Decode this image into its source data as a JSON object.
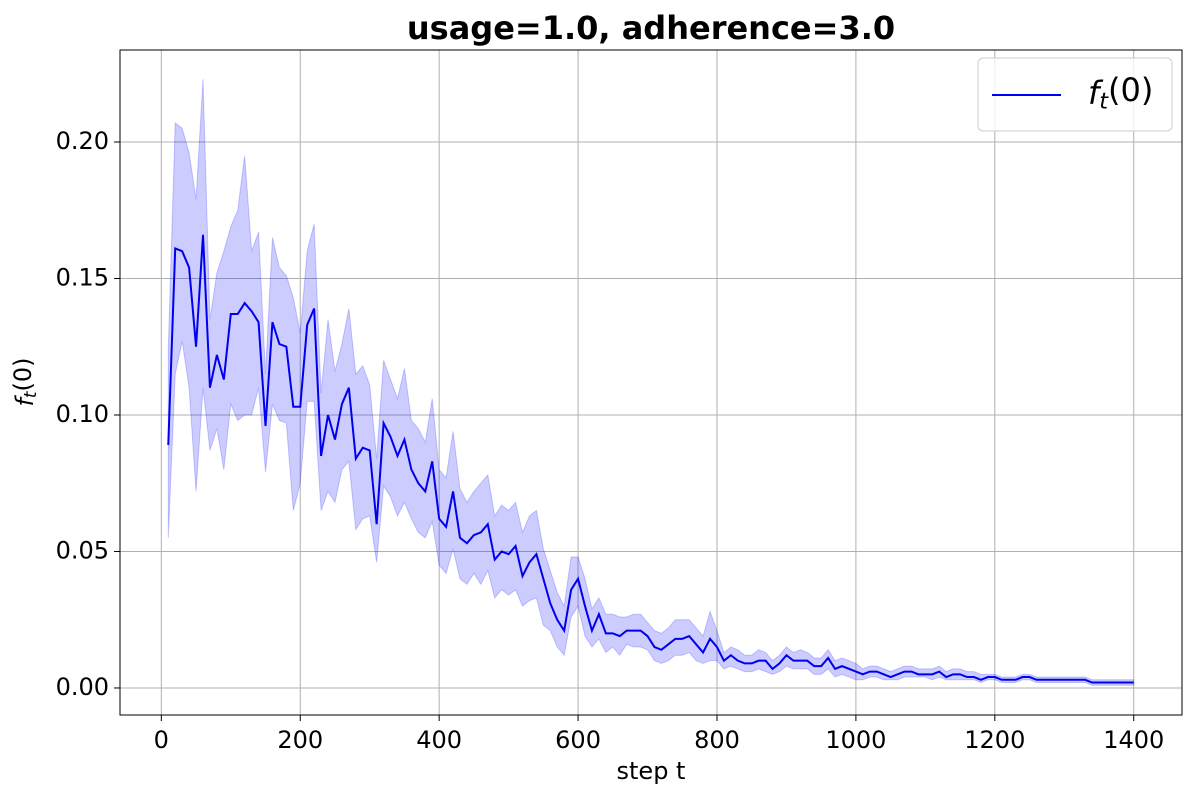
{
  "chart_data": {
    "type": "line",
    "title": "usage=1.0, adherence=3.0",
    "xlabel": "step t",
    "ylabel": "f_t(0)",
    "x": [
      10,
      20,
      30,
      40,
      50,
      60,
      70,
      80,
      90,
      100,
      110,
      120,
      130,
      140,
      150,
      160,
      170,
      180,
      190,
      200,
      210,
      220,
      230,
      240,
      250,
      260,
      270,
      280,
      290,
      300,
      310,
      320,
      330,
      340,
      350,
      360,
      370,
      380,
      390,
      400,
      410,
      420,
      430,
      440,
      450,
      460,
      470,
      480,
      490,
      500,
      510,
      520,
      530,
      540,
      550,
      560,
      570,
      580,
      590,
      600,
      610,
      620,
      630,
      640,
      650,
      660,
      670,
      680,
      690,
      700,
      710,
      720,
      730,
      740,
      750,
      760,
      770,
      780,
      790,
      800,
      810,
      820,
      830,
      840,
      850,
      860,
      870,
      880,
      890,
      900,
      910,
      920,
      930,
      940,
      950,
      960,
      970,
      980,
      990,
      1000,
      1010,
      1020,
      1030,
      1040,
      1050,
      1060,
      1070,
      1080,
      1090,
      1100,
      1110,
      1120,
      1130,
      1140,
      1150,
      1160,
      1170,
      1180,
      1190,
      1200,
      1210,
      1220,
      1230,
      1240,
      1250,
      1260,
      1270,
      1280,
      1290,
      1300,
      1310,
      1320,
      1330,
      1340,
      1350,
      1360,
      1370,
      1380,
      1390,
      1400
    ],
    "series": [
      {
        "name": "f_t(0)",
        "color": "#0000ee",
        "band_color": "#0000ff",
        "values": [
          0.089,
          0.161,
          0.16,
          0.154,
          0.125,
          0.166,
          0.11,
          0.122,
          0.113,
          0.137,
          0.137,
          0.141,
          0.138,
          0.134,
          0.096,
          0.134,
          0.126,
          0.125,
          0.103,
          0.103,
          0.133,
          0.139,
          0.085,
          0.1,
          0.091,
          0.104,
          0.11,
          0.084,
          0.088,
          0.087,
          0.06,
          0.097,
          0.092,
          0.085,
          0.091,
          0.08,
          0.075,
          0.072,
          0.083,
          0.062,
          0.059,
          0.072,
          0.055,
          0.053,
          0.056,
          0.057,
          0.06,
          0.047,
          0.05,
          0.049,
          0.052,
          0.041,
          0.046,
          0.049,
          0.04,
          0.031,
          0.025,
          0.021,
          0.036,
          0.04,
          0.03,
          0.021,
          0.027,
          0.02,
          0.02,
          0.019,
          0.021,
          0.021,
          0.021,
          0.019,
          0.015,
          0.014,
          0.016,
          0.018,
          0.018,
          0.019,
          0.016,
          0.013,
          0.018,
          0.015,
          0.01,
          0.012,
          0.01,
          0.009,
          0.009,
          0.01,
          0.01,
          0.007,
          0.009,
          0.012,
          0.01,
          0.01,
          0.01,
          0.008,
          0.008,
          0.011,
          0.007,
          0.008,
          0.007,
          0.006,
          0.005,
          0.006,
          0.006,
          0.005,
          0.004,
          0.005,
          0.006,
          0.006,
          0.005,
          0.005,
          0.005,
          0.006,
          0.004,
          0.005,
          0.005,
          0.004,
          0.004,
          0.003,
          0.004,
          0.004,
          0.003,
          0.003,
          0.003,
          0.004,
          0.004,
          0.003,
          0.003,
          0.003,
          0.003,
          0.003,
          0.003,
          0.003,
          0.003,
          0.002,
          0.002,
          0.002,
          0.002,
          0.002,
          0.002,
          0.002
        ],
        "upper": [
          0.124,
          0.207,
          0.205,
          0.196,
          0.179,
          0.223,
          0.135,
          0.152,
          0.16,
          0.169,
          0.175,
          0.195,
          0.16,
          0.167,
          0.115,
          0.165,
          0.154,
          0.151,
          0.143,
          0.13,
          0.16,
          0.17,
          0.108,
          0.135,
          0.116,
          0.126,
          0.139,
          0.115,
          0.118,
          0.111,
          0.084,
          0.12,
          0.113,
          0.106,
          0.117,
          0.098,
          0.095,
          0.09,
          0.106,
          0.08,
          0.077,
          0.094,
          0.073,
          0.068,
          0.072,
          0.075,
          0.078,
          0.063,
          0.067,
          0.065,
          0.068,
          0.057,
          0.063,
          0.065,
          0.051,
          0.043,
          0.035,
          0.03,
          0.048,
          0.048,
          0.04,
          0.029,
          0.033,
          0.027,
          0.027,
          0.026,
          0.026,
          0.027,
          0.027,
          0.024,
          0.021,
          0.02,
          0.022,
          0.025,
          0.025,
          0.025,
          0.022,
          0.019,
          0.028,
          0.021,
          0.013,
          0.015,
          0.014,
          0.012,
          0.012,
          0.014,
          0.013,
          0.01,
          0.012,
          0.015,
          0.013,
          0.014,
          0.013,
          0.011,
          0.011,
          0.014,
          0.01,
          0.011,
          0.01,
          0.009,
          0.007,
          0.008,
          0.008,
          0.007,
          0.006,
          0.007,
          0.008,
          0.008,
          0.007,
          0.007,
          0.007,
          0.008,
          0.006,
          0.007,
          0.007,
          0.006,
          0.006,
          0.005,
          0.005,
          0.005,
          0.004,
          0.004,
          0.004,
          0.005,
          0.005,
          0.004,
          0.004,
          0.004,
          0.004,
          0.004,
          0.004,
          0.004,
          0.004,
          0.003,
          0.003,
          0.003,
          0.003,
          0.003,
          0.003,
          0.003
        ],
        "lower": [
          0.055,
          0.115,
          0.127,
          0.11,
          0.072,
          0.11,
          0.087,
          0.095,
          0.08,
          0.104,
          0.098,
          0.1,
          0.1,
          0.11,
          0.079,
          0.104,
          0.098,
          0.097,
          0.065,
          0.075,
          0.105,
          0.105,
          0.065,
          0.072,
          0.068,
          0.08,
          0.083,
          0.058,
          0.062,
          0.063,
          0.046,
          0.074,
          0.07,
          0.063,
          0.068,
          0.062,
          0.057,
          0.055,
          0.061,
          0.045,
          0.042,
          0.051,
          0.04,
          0.038,
          0.042,
          0.038,
          0.043,
          0.033,
          0.036,
          0.034,
          0.036,
          0.03,
          0.032,
          0.033,
          0.023,
          0.021,
          0.015,
          0.012,
          0.026,
          0.03,
          0.019,
          0.015,
          0.018,
          0.013,
          0.015,
          0.012,
          0.016,
          0.015,
          0.015,
          0.014,
          0.01,
          0.009,
          0.01,
          0.012,
          0.012,
          0.013,
          0.01,
          0.009,
          0.01,
          0.01,
          0.007,
          0.008,
          0.007,
          0.006,
          0.006,
          0.007,
          0.006,
          0.005,
          0.006,
          0.008,
          0.007,
          0.007,
          0.007,
          0.005,
          0.005,
          0.007,
          0.004,
          0.005,
          0.004,
          0.003,
          0.003,
          0.004,
          0.004,
          0.003,
          0.003,
          0.003,
          0.004,
          0.004,
          0.004,
          0.004,
          0.003,
          0.004,
          0.003,
          0.003,
          0.003,
          0.003,
          0.003,
          0.002,
          0.003,
          0.003,
          0.002,
          0.002,
          0.002,
          0.003,
          0.003,
          0.002,
          0.002,
          0.002,
          0.002,
          0.002,
          0.002,
          0.002,
          0.002,
          0.001,
          0.001,
          0.001,
          0.001,
          0.001,
          0.001,
          0.001
        ]
      }
    ],
    "xlim": [
      -59.5,
      1469.5
    ],
    "ylim": [
      -0.0099,
      0.2337
    ],
    "xticks": [
      0,
      200,
      400,
      600,
      800,
      1000,
      1200,
      1400
    ],
    "yticks": [
      {
        "value": 0,
        "label": "0.00"
      },
      0.05,
      {
        "value": 0.1,
        "label": "0.10"
      },
      0.15,
      {
        "value": 0.2,
        "label": "0.20"
      }
    ],
    "grid": true,
    "legend": "upper right"
  }
}
